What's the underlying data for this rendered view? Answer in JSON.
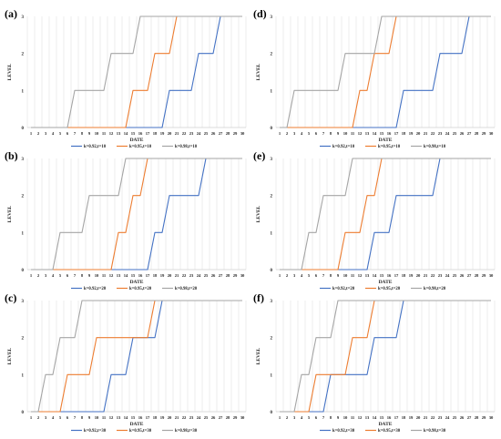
{
  "chart_data": [
    {
      "panel_label": "(a)",
      "type": "line",
      "xlabel": "DATE",
      "ylabel": "LEVEL",
      "x": [
        1,
        2,
        3,
        4,
        5,
        6,
        7,
        8,
        9,
        10,
        11,
        12,
        13,
        14,
        15,
        16,
        17,
        18,
        19,
        20,
        21,
        22,
        23,
        24,
        25,
        26,
        27,
        28,
        29,
        30
      ],
      "ylim": [
        0,
        3
      ],
      "yticks": [
        0,
        1,
        2,
        3
      ],
      "grid": "vertical",
      "legend": "bottom",
      "series": [
        {
          "name": "k=0.92,t=10",
          "color": "#4472C4",
          "points": [
            [
              1,
              0
            ],
            [
              19,
              0
            ],
            [
              20,
              1
            ],
            [
              23,
              1
            ],
            [
              24,
              2
            ],
            [
              26,
              2
            ],
            [
              27,
              3
            ],
            [
              30,
              3
            ]
          ]
        },
        {
          "name": "k=0.95,t=10",
          "color": "#ED7D31",
          "points": [
            [
              1,
              0
            ],
            [
              14,
              0
            ],
            [
              15,
              1
            ],
            [
              17,
              1
            ],
            [
              18,
              2
            ],
            [
              20,
              2
            ],
            [
              21,
              3
            ],
            [
              30,
              3
            ]
          ]
        },
        {
          "name": "k=0.98,t=10",
          "color": "#A5A5A5",
          "points": [
            [
              1,
              0
            ],
            [
              6,
              0
            ],
            [
              7,
              1
            ],
            [
              11,
              1
            ],
            [
              12,
              2
            ],
            [
              15,
              2
            ],
            [
              16,
              3
            ],
            [
              30,
              3
            ]
          ]
        }
      ]
    },
    {
      "panel_label": "(b)",
      "type": "line",
      "xlabel": "DATE",
      "ylabel": "LEVEL",
      "x": [
        1,
        2,
        3,
        4,
        5,
        6,
        7,
        8,
        9,
        10,
        11,
        12,
        13,
        14,
        15,
        16,
        17,
        18,
        19,
        20,
        21,
        22,
        23,
        24,
        25,
        26,
        27,
        28,
        29,
        30
      ],
      "ylim": [
        0,
        3
      ],
      "yticks": [
        0,
        1,
        2,
        3
      ],
      "grid": "vertical",
      "legend": "bottom",
      "series": [
        {
          "name": "k=0.92,t=20",
          "color": "#4472C4",
          "points": [
            [
              1,
              0
            ],
            [
              17,
              0
            ],
            [
              18,
              1
            ],
            [
              19,
              1
            ],
            [
              20,
              2
            ],
            [
              24,
              2
            ],
            [
              25,
              3
            ],
            [
              30,
              3
            ]
          ]
        },
        {
          "name": "k=0.95,t=20",
          "color": "#ED7D31",
          "points": [
            [
              1,
              0
            ],
            [
              12,
              0
            ],
            [
              13,
              1
            ],
            [
              14,
              1
            ],
            [
              15,
              2
            ],
            [
              16,
              2
            ],
            [
              17,
              3
            ],
            [
              30,
              3
            ]
          ]
        },
        {
          "name": "k=0.98,t=20",
          "color": "#A5A5A5",
          "points": [
            [
              1,
              0
            ],
            [
              4,
              0
            ],
            [
              5,
              1
            ],
            [
              8,
              1
            ],
            [
              9,
              2
            ],
            [
              13,
              2
            ],
            [
              14,
              3
            ],
            [
              30,
              3
            ]
          ]
        }
      ]
    },
    {
      "panel_label": "(c)",
      "type": "line",
      "xlabel": "DATE",
      "ylabel": "LEVEL",
      "x": [
        1,
        2,
        3,
        4,
        5,
        6,
        7,
        8,
        9,
        10,
        11,
        12,
        13,
        14,
        15,
        16,
        17,
        18,
        19,
        20,
        21,
        22,
        23,
        24,
        25,
        26,
        27,
        28,
        29,
        30
      ],
      "ylim": [
        0,
        3
      ],
      "yticks": [
        0,
        1,
        2,
        3
      ],
      "grid": "vertical",
      "legend": "bottom",
      "series": [
        {
          "name": "k=0.92,t=30",
          "color": "#4472C4",
          "points": [
            [
              1,
              0
            ],
            [
              11,
              0
            ],
            [
              12,
              1
            ],
            [
              14,
              1
            ],
            [
              15,
              2
            ],
            [
              18,
              2
            ],
            [
              19,
              3
            ],
            [
              30,
              3
            ]
          ]
        },
        {
          "name": "k=0.95,t=30",
          "color": "#ED7D31",
          "points": [
            [
              1,
              0
            ],
            [
              5,
              0
            ],
            [
              6,
              1
            ],
            [
              9,
              1
            ],
            [
              10,
              2
            ],
            [
              17,
              2
            ],
            [
              18,
              3
            ],
            [
              30,
              3
            ]
          ]
        },
        {
          "name": "k=0.98,t=30",
          "color": "#A5A5A5",
          "points": [
            [
              1,
              0
            ],
            [
              2,
              0
            ],
            [
              3,
              1
            ],
            [
              4,
              1
            ],
            [
              5,
              2
            ],
            [
              7,
              2
            ],
            [
              8,
              3
            ],
            [
              30,
              3
            ]
          ]
        }
      ]
    },
    {
      "panel_label": "(d)",
      "type": "line",
      "xlabel": "DATE",
      "ylabel": "LEVEL",
      "x": [
        1,
        2,
        3,
        4,
        5,
        6,
        7,
        8,
        9,
        10,
        11,
        12,
        13,
        14,
        15,
        16,
        17,
        18,
        19,
        20,
        21,
        22,
        23,
        24,
        25,
        26,
        27,
        28,
        29,
        30
      ],
      "ylim": [
        0,
        3
      ],
      "yticks": [
        0,
        1,
        2,
        3
      ],
      "grid": "vertical",
      "legend": "bottom",
      "series": [
        {
          "name": "k=0.92,t=10",
          "color": "#4472C4",
          "points": [
            [
              1,
              0
            ],
            [
              17,
              0
            ],
            [
              18,
              1
            ],
            [
              22,
              1
            ],
            [
              23,
              2
            ],
            [
              26,
              2
            ],
            [
              27,
              3
            ],
            [
              30,
              3
            ]
          ]
        },
        {
          "name": "k=0.95,t=10",
          "color": "#ED7D31",
          "points": [
            [
              1,
              0
            ],
            [
              11,
              0
            ],
            [
              12,
              1
            ],
            [
              13,
              1
            ],
            [
              14,
              2
            ],
            [
              16,
              2
            ],
            [
              17,
              3
            ],
            [
              30,
              3
            ]
          ]
        },
        {
          "name": "k=0.98,t=10",
          "color": "#A5A5A5",
          "points": [
            [
              1,
              0
            ],
            [
              2,
              0
            ],
            [
              3,
              1
            ],
            [
              9,
              1
            ],
            [
              10,
              2
            ],
            [
              14,
              2
            ],
            [
              15,
              3
            ],
            [
              30,
              3
            ]
          ]
        }
      ]
    },
    {
      "panel_label": "(e)",
      "type": "line",
      "xlabel": "DATE",
      "ylabel": "LEVEL",
      "x": [
        1,
        2,
        3,
        4,
        5,
        6,
        7,
        8,
        9,
        10,
        11,
        12,
        13,
        14,
        15,
        16,
        17,
        18,
        19,
        20,
        21,
        22,
        23,
        24,
        25,
        26,
        27,
        28,
        29,
        30
      ],
      "ylim": [
        0,
        3
      ],
      "yticks": [
        0,
        1,
        2,
        3
      ],
      "grid": "vertical",
      "legend": "bottom",
      "series": [
        {
          "name": "k=0.92,t=20",
          "color": "#4472C4",
          "points": [
            [
              1,
              0
            ],
            [
              13,
              0
            ],
            [
              14,
              1
            ],
            [
              16,
              1
            ],
            [
              17,
              2
            ],
            [
              22,
              2
            ],
            [
              23,
              3
            ],
            [
              30,
              3
            ]
          ]
        },
        {
          "name": "k=0.95,t=20",
          "color": "#ED7D31",
          "points": [
            [
              1,
              0
            ],
            [
              9,
              0
            ],
            [
              10,
              1
            ],
            [
              12,
              1
            ],
            [
              13,
              2
            ],
            [
              14,
              2
            ],
            [
              15,
              3
            ],
            [
              30,
              3
            ]
          ]
        },
        {
          "name": "k=0.98,t=20",
          "color": "#A5A5A5",
          "points": [
            [
              1,
              0
            ],
            [
              4,
              0
            ],
            [
              5,
              1
            ],
            [
              6,
              1
            ],
            [
              7,
              2
            ],
            [
              10,
              2
            ],
            [
              11,
              3
            ],
            [
              30,
              3
            ]
          ]
        }
      ]
    },
    {
      "panel_label": "(f)",
      "type": "line",
      "xlabel": "DATE",
      "ylabel": "LEVEL",
      "x": [
        1,
        2,
        3,
        4,
        5,
        6,
        7,
        8,
        9,
        10,
        11,
        12,
        13,
        14,
        15,
        16,
        17,
        18,
        19,
        20,
        21,
        22,
        23,
        24,
        25,
        26,
        27,
        28,
        29,
        30
      ],
      "ylim": [
        0,
        3
      ],
      "yticks": [
        0,
        1,
        2,
        3
      ],
      "grid": "vertical",
      "legend": "bottom",
      "series": [
        {
          "name": "k=0.92,t=30",
          "color": "#4472C4",
          "points": [
            [
              1,
              0
            ],
            [
              7,
              0
            ],
            [
              8,
              1
            ],
            [
              13,
              1
            ],
            [
              14,
              2
            ],
            [
              17,
              2
            ],
            [
              18,
              3
            ],
            [
              30,
              3
            ]
          ]
        },
        {
          "name": "k=0.95,t=30",
          "color": "#ED7D31",
          "points": [
            [
              1,
              0
            ],
            [
              5,
              0
            ],
            [
              6,
              1
            ],
            [
              10,
              1
            ],
            [
              11,
              2
            ],
            [
              13,
              2
            ],
            [
              14,
              3
            ],
            [
              30,
              3
            ]
          ]
        },
        {
          "name": "k=0.98,t=30",
          "color": "#A5A5A5",
          "points": [
            [
              1,
              0
            ],
            [
              3,
              0
            ],
            [
              4,
              1
            ],
            [
              5,
              1
            ],
            [
              6,
              2
            ],
            [
              8,
              2
            ],
            [
              9,
              3
            ],
            [
              30,
              3
            ]
          ]
        }
      ]
    }
  ]
}
